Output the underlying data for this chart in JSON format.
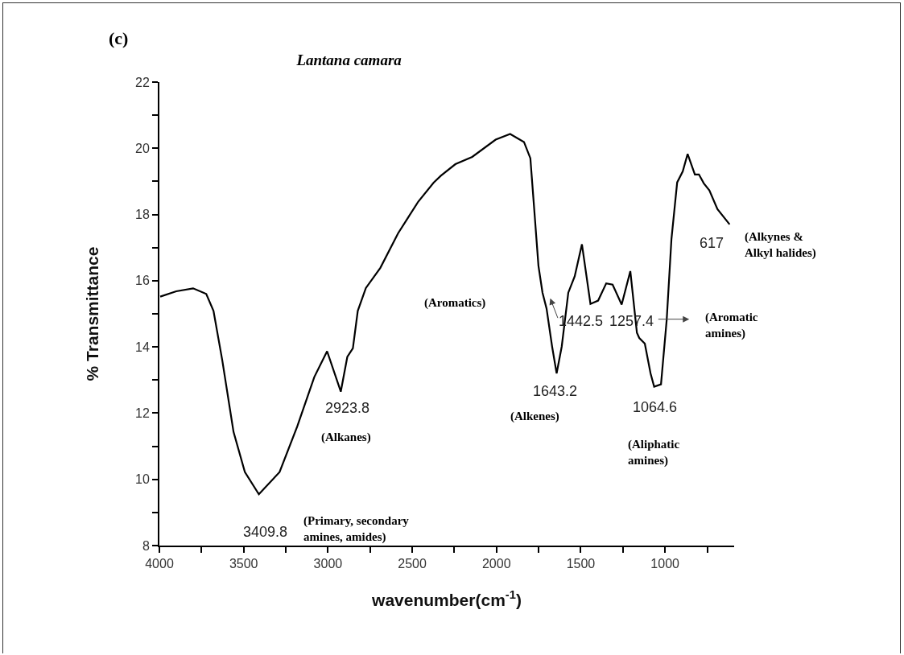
{
  "chart_data": {
    "type": "line",
    "title": "Lantana camara",
    "xlabel": "wavenumber(cm$^{-1}$)",
    "ylabel": "% Transmittance",
    "xlim": [
      4000,
      590
    ],
    "ylim": [
      8,
      22
    ],
    "xticks": [
      4000,
      {
        "value": 3750,
        "label": null
      },
      3500,
      {
        "value": 3250,
        "label": null
      },
      3000,
      {
        "value": 2750,
        "label": null
      },
      2500,
      {
        "value": 2250,
        "label": null
      },
      2000,
      {
        "value": 1750,
        "label": null
      },
      1500,
      {
        "value": 1250,
        "label": null
      },
      1000,
      {
        "value": 750,
        "label": null
      }
    ],
    "yticks": [
      8,
      {
        "value": 9,
        "label": null
      },
      10,
      {
        "value": 11,
        "label": null
      },
      12,
      {
        "value": 13,
        "label": null
      },
      14,
      {
        "value": 15,
        "label": null
      },
      16,
      {
        "value": 17,
        "label": null
      },
      18,
      {
        "value": 19,
        "label": null
      },
      20,
      {
        "value": 21,
        "label": null
      },
      22
    ],
    "grid": false,
    "series": [
      {
        "color": "#000000",
        "x": [
          3995,
          3900,
          3800,
          3722,
          3679,
          3627,
          3560,
          3493,
          3409.8,
          3287,
          3182,
          3081,
          3005,
          2923.8,
          2885,
          2852,
          2823,
          2775,
          2689,
          2584,
          2464,
          2373,
          2330,
          2244,
          2144,
          2005,
          1919,
          1837,
          1799,
          1775,
          1751,
          1727,
          1703,
          1670,
          1643.2,
          1613,
          1574,
          1536,
          1493,
          1442.5,
          1397,
          1349,
          1311,
          1257.4,
          1206,
          1167,
          1153,
          1120,
          1086,
          1064.6,
          1024,
          990,
          962,
          928,
          895,
          866,
          823,
          799,
          770,
          737,
          689,
          617
        ],
        "values": [
          15.52,
          15.68,
          15.77,
          15.6,
          15.09,
          13.6,
          11.43,
          10.22,
          9.55,
          10.22,
          11.6,
          13.09,
          13.87,
          12.65,
          13.7,
          13.96,
          15.09,
          15.78,
          16.39,
          17.43,
          18.39,
          18.96,
          19.17,
          19.52,
          19.74,
          20.26,
          20.43,
          20.19,
          19.7,
          18.08,
          16.45,
          15.64,
          15.16,
          14.01,
          13.2,
          14.01,
          15.64,
          16.13,
          17.1,
          15.3,
          15.4,
          15.92,
          15.88,
          15.28,
          16.29,
          14.43,
          14.27,
          14.1,
          13.2,
          12.8,
          12.87,
          14.83,
          17.26,
          18.97,
          19.3,
          19.83,
          19.21,
          19.21,
          18.94,
          18.73,
          18.16,
          17.7
        ]
      }
    ],
    "annotations": [
      "(c)",
      {
        "text": "3409.8",
        "x": 3409.8,
        "y": 9.55
      },
      "(Primary, secondary\namines, amides)",
      {
        "text": "2923.8",
        "x": 2923.8,
        "y": 12.65
      },
      "(Alkanes)",
      {
        "text": "1643.2",
        "x": 1643.2,
        "y": 13.2
      },
      "(Alkenes)",
      {
        "text": "1442.5",
        "x": 1442.5,
        "y": 15.3
      },
      "(Aromatics)",
      {
        "text": "1257.4",
        "x": 1257.4,
        "y": 15.3
      },
      "(Aromatic\namines)",
      {
        "text": "1064.6",
        "x": 1064.6,
        "y": 12.8
      },
      "(Aliphatic\namines)",
      {
        "text": "617",
        "x": 617,
        "y": 17.7
      },
      "(Alkynes &\nAlkyl halides)"
    ]
  }
}
